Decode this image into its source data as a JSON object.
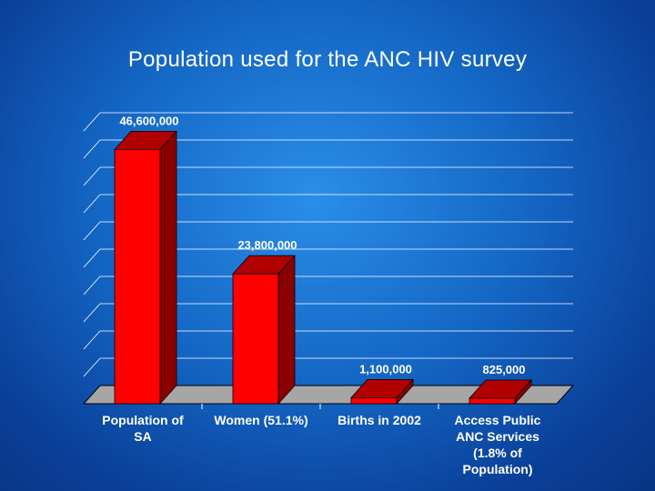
{
  "chart_data": {
    "type": "bar",
    "title": "Population used for the ANC HIV survey",
    "categories": [
      [
        "Population of",
        "SA"
      ],
      [
        "Women (51.1%)"
      ],
      [
        "Births in 2002"
      ],
      [
        "Access Public",
        "ANC Services",
        "(1.8% of",
        "Population)"
      ]
    ],
    "values": [
      46600000,
      23800000,
      1100000,
      825000
    ],
    "value_labels": [
      "46,600,000",
      "23,800,000",
      "1,100,000",
      "825,000"
    ],
    "ylim": [
      0,
      50000000
    ],
    "grid": true,
    "colors": {
      "bar_front": "#ff0000",
      "bar_top": "#b00000",
      "bar_side": "#8a0000",
      "floor": "#a6a6a6"
    }
  }
}
